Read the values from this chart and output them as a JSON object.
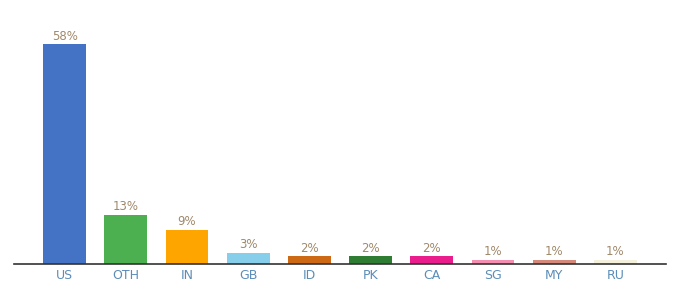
{
  "categories": [
    "US",
    "OTH",
    "IN",
    "GB",
    "ID",
    "PK",
    "CA",
    "SG",
    "MY",
    "RU"
  ],
  "values": [
    58,
    13,
    9,
    3,
    2,
    2,
    2,
    1,
    1,
    1
  ],
  "bar_colors": [
    "#4472C4",
    "#4CAF50",
    "#FFA500",
    "#87CEEB",
    "#CD6914",
    "#2E7D32",
    "#E91E8C",
    "#F48FB1",
    "#D4897A",
    "#F5F0DC"
  ],
  "label_color": "#A0896A",
  "ylim": [
    0,
    65
  ],
  "background_color": "#ffffff",
  "bar_width": 0.7,
  "xlabel_color": "#5B8DB8",
  "xlabel_fontsize": 9
}
